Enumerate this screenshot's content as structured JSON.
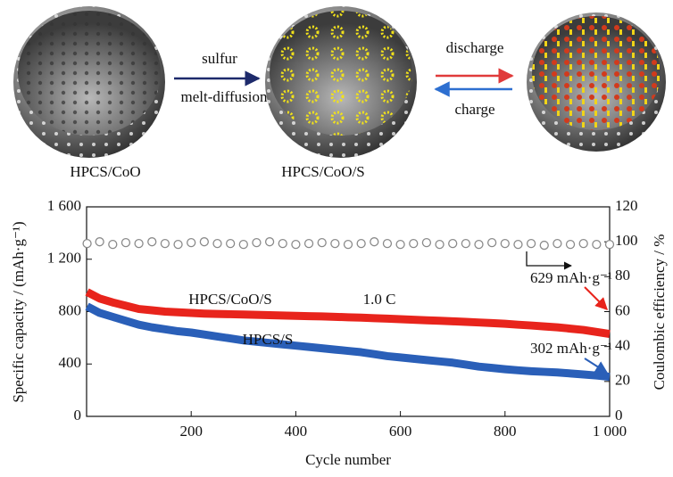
{
  "schematic": {
    "step1": "sulfur",
    "step2": "melt-diffusion",
    "forward": "discharge",
    "backward": "charge",
    "label1": "HPCS/CoO",
    "label2": "HPCS/CoO/S"
  },
  "chart_data": {
    "type": "line",
    "x_label": "Cycle number",
    "y_label": "Specific capacity  / (mAh·g⁻¹)",
    "y2_label": "Coulombic efficiency / %",
    "x": [
      1,
      25,
      50,
      75,
      100,
      125,
      150,
      175,
      200,
      225,
      250,
      275,
      300,
      325,
      350,
      375,
      400,
      425,
      450,
      475,
      500,
      525,
      550,
      575,
      600,
      625,
      650,
      675,
      700,
      725,
      750,
      775,
      800,
      825,
      850,
      875,
      900,
      925,
      950,
      975,
      1000
    ],
    "xlim": [
      0,
      1000
    ],
    "xticks": [
      200,
      400,
      600,
      800,
      {
        "value": 1000,
        "label": "1 000"
      }
    ],
    "ylim": [
      0,
      1600
    ],
    "yticks": [
      0,
      400,
      800,
      {
        "value": 1200,
        "label": "1 200"
      },
      {
        "value": 1600,
        "label": "1 600"
      }
    ],
    "y2lim": [
      0,
      120
    ],
    "y2ticks": [
      0,
      20,
      40,
      60,
      80,
      100,
      120
    ],
    "series": [
      {
        "name": "HPCS/CoO/S",
        "color": "#e8241c",
        "marker": "line",
        "values": [
          950,
          900,
          870,
          845,
          820,
          810,
          800,
          795,
          790,
          785,
          782,
          780,
          778,
          775,
          773,
          770,
          768,
          765,
          763,
          760,
          757,
          754,
          750,
          746,
          742,
          738,
          734,
          730,
          726,
          722,
          717,
          712,
          707,
          700,
          694,
          687,
          680,
          670,
          660,
          645,
          629
        ]
      },
      {
        "name": "HPCS/S",
        "color": "#2a5fb8",
        "marker": "line",
        "values": [
          840,
          790,
          760,
          730,
          700,
          680,
          665,
          650,
          640,
          625,
          610,
          595,
          580,
          570,
          560,
          550,
          540,
          530,
          520,
          510,
          500,
          490,
          475,
          460,
          450,
          440,
          430,
          420,
          410,
          395,
          380,
          370,
          360,
          352,
          345,
          340,
          335,
          328,
          320,
          312,
          302
        ]
      },
      {
        "name": null,
        "color": "#8a8a8a",
        "marker": "circle",
        "axis": "y2",
        "values": [
          99,
          100,
          98.5,
          99.5,
          99,
          100,
          99,
          98.5,
          99.5,
          100,
          99,
          99,
          98.5,
          99.5,
          100,
          99,
          98.5,
          99,
          99.5,
          99,
          98.5,
          99,
          100,
          99,
          98.5,
          99,
          99.5,
          98.5,
          99,
          99,
          98.5,
          99.5,
          99,
          98.5,
          99,
          98,
          99,
          98.5,
          99,
          98.5,
          98.5
        ]
      }
    ],
    "annotations": [
      "1.0 C",
      "629 mAh·g⁻¹",
      "302 mAh·g⁻¹"
    ]
  }
}
